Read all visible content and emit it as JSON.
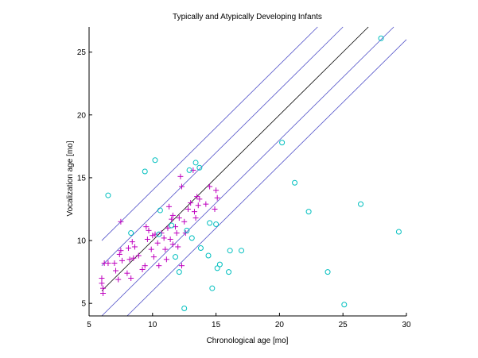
{
  "chart_data": {
    "type": "scatter",
    "title": "Typically and Atypically Developing Infants",
    "xlabel": "Chronological age [mo]",
    "ylabel": "Vocalization age [mo]",
    "xlim": [
      5,
      30
    ],
    "ylim": [
      4,
      27
    ],
    "xticks": [
      5,
      10,
      15,
      20,
      25,
      30
    ],
    "yticks": [
      5,
      10,
      15,
      20,
      25
    ],
    "grid": false,
    "colors": {
      "cross": "#bf00bf",
      "circle": "#00bfbf",
      "band_line": "#5050c8",
      "center_line": "#000000"
    },
    "reference_lines": [
      {
        "offset": -4,
        "color": "#5050c8"
      },
      {
        "offset": -2,
        "color": "#5050c8"
      },
      {
        "offset": 0,
        "color": "#000000"
      },
      {
        "offset": 2,
        "color": "#5050c8"
      },
      {
        "offset": 4,
        "color": "#5050c8"
      }
    ],
    "series": [
      {
        "marker": "plus",
        "color": "#bf00bf",
        "points": [
          [
            6.0,
            7.0
          ],
          [
            6.0,
            6.6
          ],
          [
            6.1,
            6.2
          ],
          [
            6.1,
            5.8
          ],
          [
            6.2,
            8.2
          ],
          [
            6.5,
            8.2
          ],
          [
            7.0,
            8.2
          ],
          [
            7.1,
            7.6
          ],
          [
            7.3,
            6.9
          ],
          [
            7.4,
            8.9
          ],
          [
            7.5,
            9.2
          ],
          [
            7.5,
            11.5
          ],
          [
            7.6,
            8.4
          ],
          [
            8.0,
            7.4
          ],
          [
            8.1,
            9.4
          ],
          [
            8.2,
            8.5
          ],
          [
            8.3,
            7.0
          ],
          [
            8.4,
            9.9
          ],
          [
            8.5,
            8.6
          ],
          [
            8.6,
            9.5
          ],
          [
            8.9,
            8.8
          ],
          [
            9.2,
            7.7
          ],
          [
            9.4,
            8.0
          ],
          [
            9.5,
            11.1
          ],
          [
            9.6,
            10.1
          ],
          [
            9.7,
            10.8
          ],
          [
            9.9,
            9.3
          ],
          [
            10.0,
            10.4
          ],
          [
            10.1,
            8.7
          ],
          [
            10.2,
            10.5
          ],
          [
            10.4,
            9.8
          ],
          [
            10.5,
            8.0
          ],
          [
            10.7,
            10.6
          ],
          [
            11.0,
            9.3
          ],
          [
            11.1,
            8.5
          ],
          [
            11.2,
            11.0
          ],
          [
            11.3,
            12.7
          ],
          [
            11.4,
            10.1
          ],
          [
            11.5,
            11.7
          ],
          [
            11.6,
            9.7
          ],
          [
            11.8,
            11.1
          ],
          [
            11.9,
            10.6
          ],
          [
            12.0,
            9.5
          ],
          [
            12.1,
            11.8
          ],
          [
            12.2,
            15.1
          ],
          [
            12.3,
            14.3
          ],
          [
            12.5,
            11.5
          ],
          [
            12.6,
            10.6
          ],
          [
            12.8,
            12.5
          ],
          [
            13.0,
            13.0
          ],
          [
            13.2,
            15.6
          ],
          [
            13.3,
            12.3
          ],
          [
            13.4,
            11.8
          ],
          [
            13.5,
            13.5
          ],
          [
            13.6,
            12.8
          ],
          [
            13.7,
            13.3
          ],
          [
            14.2,
            12.9
          ],
          [
            14.5,
            14.3
          ],
          [
            14.9,
            12.5
          ],
          [
            15.0,
            14.0
          ],
          [
            15.1,
            13.4
          ],
          [
            12.3,
            8.0
          ],
          [
            10.9,
            10.2
          ],
          [
            11.6,
            12.0
          ]
        ]
      },
      {
        "marker": "circle",
        "color": "#00bfbf",
        "points": [
          [
            6.5,
            13.6
          ],
          [
            8.3,
            10.6
          ],
          [
            9.4,
            15.5
          ],
          [
            10.2,
            16.4
          ],
          [
            10.5,
            10.5
          ],
          [
            10.6,
            12.4
          ],
          [
            11.5,
            11.2
          ],
          [
            11.8,
            8.7
          ],
          [
            12.1,
            7.5
          ],
          [
            12.5,
            4.6
          ],
          [
            12.7,
            10.8
          ],
          [
            12.9,
            15.6
          ],
          [
            13.1,
            10.2
          ],
          [
            13.4,
            16.2
          ],
          [
            13.7,
            15.8
          ],
          [
            13.8,
            9.4
          ],
          [
            14.4,
            8.8
          ],
          [
            14.5,
            11.4
          ],
          [
            14.7,
            6.2
          ],
          [
            15.0,
            11.3
          ],
          [
            15.1,
            7.8
          ],
          [
            15.3,
            8.1
          ],
          [
            16.0,
            7.5
          ],
          [
            16.1,
            9.2
          ],
          [
            17.0,
            9.2
          ],
          [
            20.2,
            17.8
          ],
          [
            21.2,
            14.6
          ],
          [
            22.3,
            12.3
          ],
          [
            23.8,
            7.5
          ],
          [
            25.1,
            4.9
          ],
          [
            26.4,
            12.9
          ],
          [
            28.0,
            26.1
          ],
          [
            29.4,
            10.7
          ]
        ]
      }
    ]
  }
}
